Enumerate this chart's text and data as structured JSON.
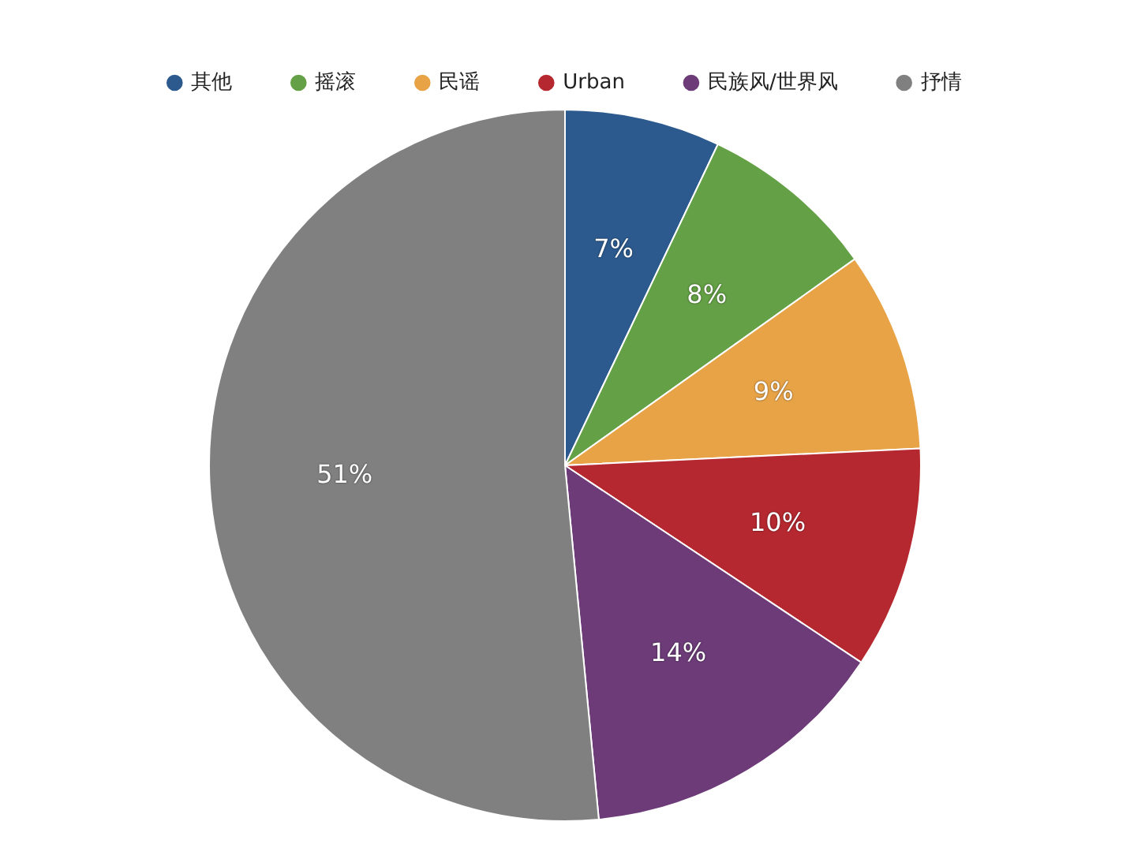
{
  "chart_data": {
    "type": "pie",
    "categories": [
      "其他",
      "摇滚",
      "民谣",
      "Urban",
      "民族风/世界风",
      "抒情"
    ],
    "values": [
      7,
      8,
      9,
      10,
      14,
      51
    ],
    "colors": [
      "#2c5a8e",
      "#64a045",
      "#e8a347",
      "#b6282f",
      "#6c3b78",
      "#808080"
    ],
    "value_labels": [
      "7%",
      "8%",
      "9%",
      "10%",
      "14%",
      "51%"
    ],
    "legend": "top"
  }
}
